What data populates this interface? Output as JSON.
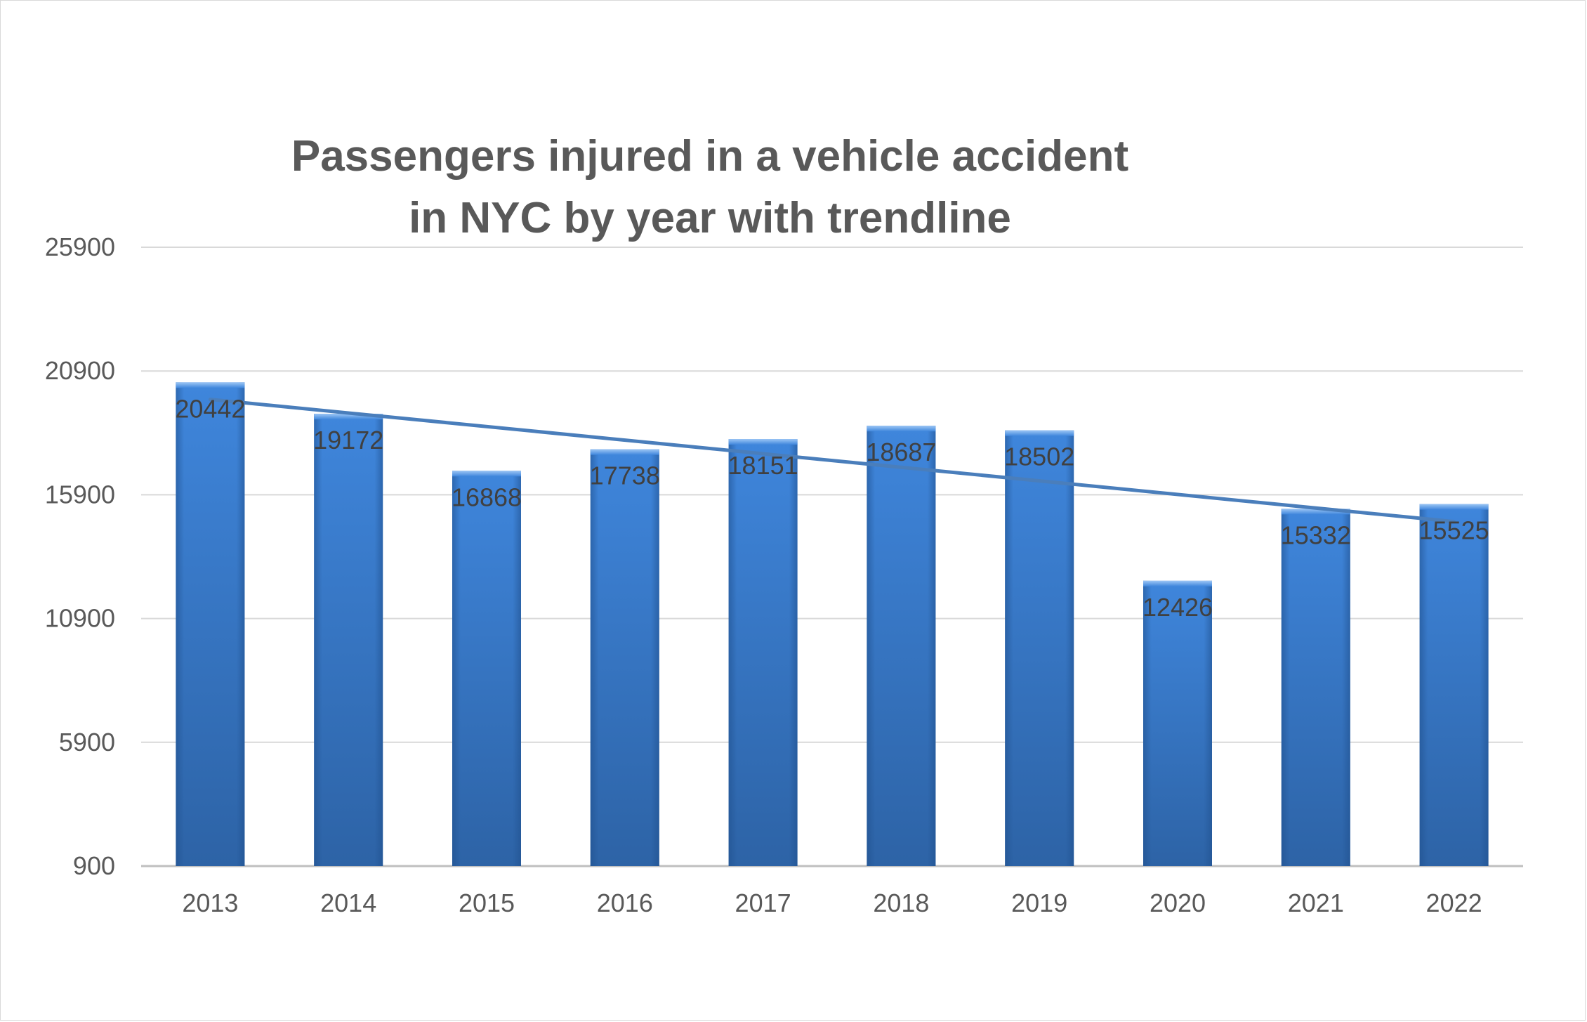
{
  "chart_data": {
    "type": "bar",
    "title": "Passengers injured in a vehicle accident\nin NYC by year with trendline",
    "xlabel": "",
    "ylabel": "",
    "categories": [
      "2013",
      "2014",
      "2015",
      "2016",
      "2017",
      "2018",
      "2019",
      "2020",
      "2021",
      "2022"
    ],
    "series": [
      {
        "values": [
          20442,
          19172,
          16868,
          17738,
          18151,
          18687,
          18502,
          12426,
          15332,
          15525
        ],
        "color": "#3a7bd0"
      }
    ],
    "trendline": {
      "type": "linear",
      "color": "#4a7ebb"
    },
    "ylim": [
      900,
      25900
    ],
    "yticks": [
      "25900",
      "20900",
      "15900",
      "10900",
      "5900",
      "900"
    ],
    "grid": true,
    "legend": "none",
    "data_labels": true
  }
}
